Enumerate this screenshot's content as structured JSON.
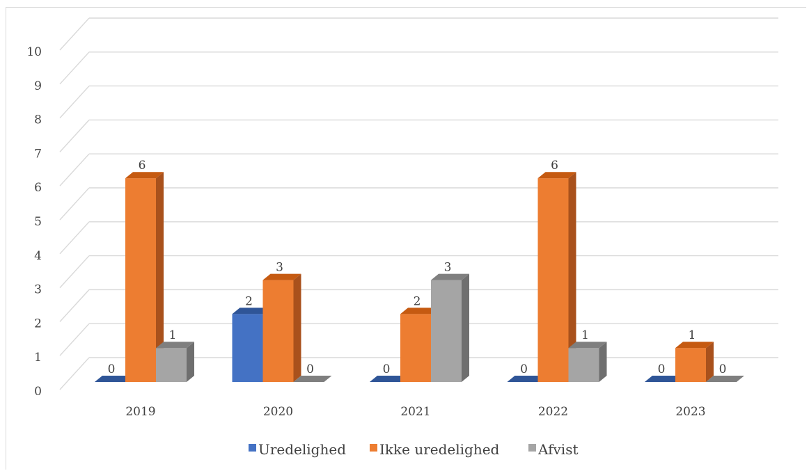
{
  "chart_data": {
    "type": "bar",
    "title": "",
    "xlabel": "",
    "ylabel": "",
    "ylim": [
      0,
      10
    ],
    "yticks": [
      0,
      1,
      2,
      3,
      4,
      5,
      6,
      7,
      8,
      9,
      10
    ],
    "grid": true,
    "legend_position": "bottom",
    "categories": [
      "2019",
      "2020",
      "2021",
      "2022",
      "2023"
    ],
    "series": [
      {
        "name": "Uredelighed",
        "values": [
          0,
          2,
          0,
          0,
          0
        ],
        "color": "#4472c4",
        "side_color": "#2f5597",
        "top_color": "#2f5597"
      },
      {
        "name": "Ikke uredelighed",
        "values": [
          6,
          3,
          2,
          6,
          1
        ],
        "color": "#ed7d31",
        "side_color": "#a9511c",
        "top_color": "#c55a11"
      },
      {
        "name": "Afvist",
        "values": [
          1,
          0,
          3,
          1,
          0
        ],
        "color": "#a5a5a5",
        "side_color": "#6f6f6f",
        "top_color": "#7f7f7f"
      }
    ]
  }
}
